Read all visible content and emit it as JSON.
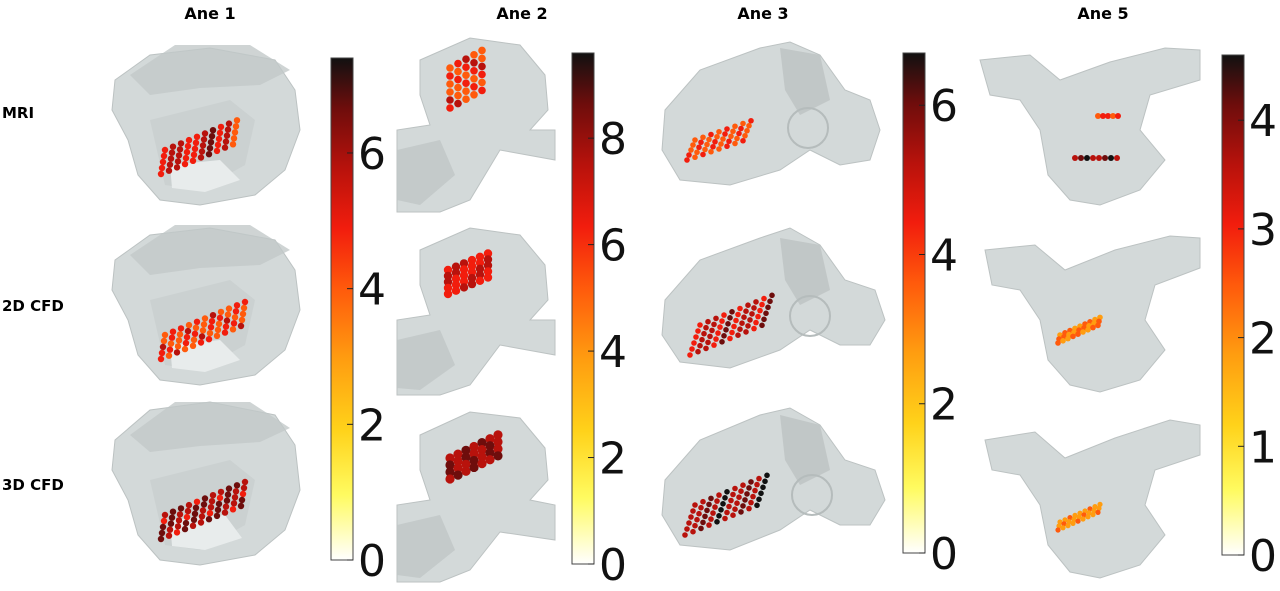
{
  "figure": {
    "columns": [
      "Ane 1",
      "Ane 2",
      "Ane 3",
      "Ane 5"
    ],
    "rows": [
      "MRI",
      "2D CFD",
      "3D CFD"
    ]
  },
  "colorbars": [
    {
      "column": "Ane 1",
      "ticks": [
        "0",
        "2",
        "4",
        "6"
      ],
      "tick_values": [
        0,
        2,
        4,
        6
      ],
      "max": 7.4
    },
    {
      "column": "Ane 2",
      "ticks": [
        "0",
        "2",
        "4",
        "6",
        "8"
      ],
      "tick_values": [
        0,
        2,
        4,
        6,
        8
      ],
      "max": 9.6
    },
    {
      "column": "Ane 3",
      "ticks": [
        "0",
        "2",
        "4",
        "6"
      ],
      "tick_values": [
        0,
        2,
        4,
        6
      ],
      "max": 6.7
    },
    {
      "column": "Ane 5",
      "ticks": [
        "0",
        "1",
        "2",
        "3",
        "4"
      ],
      "tick_values": [
        0,
        1,
        2,
        3,
        4
      ],
      "max": 4.6
    }
  ],
  "colormap": [
    "#ffffff",
    "#fffb60",
    "#ffd21a",
    "#ff9d10",
    "#ff5a0c",
    "#f21d0d",
    "#b8120c",
    "#6e0d0c",
    "#111111"
  ],
  "colors": {
    "vessel_fill": "#c9cfcf",
    "vessel_stroke": "#b0b7b7",
    "vessel_shadow": "#9fa6a6"
  }
}
